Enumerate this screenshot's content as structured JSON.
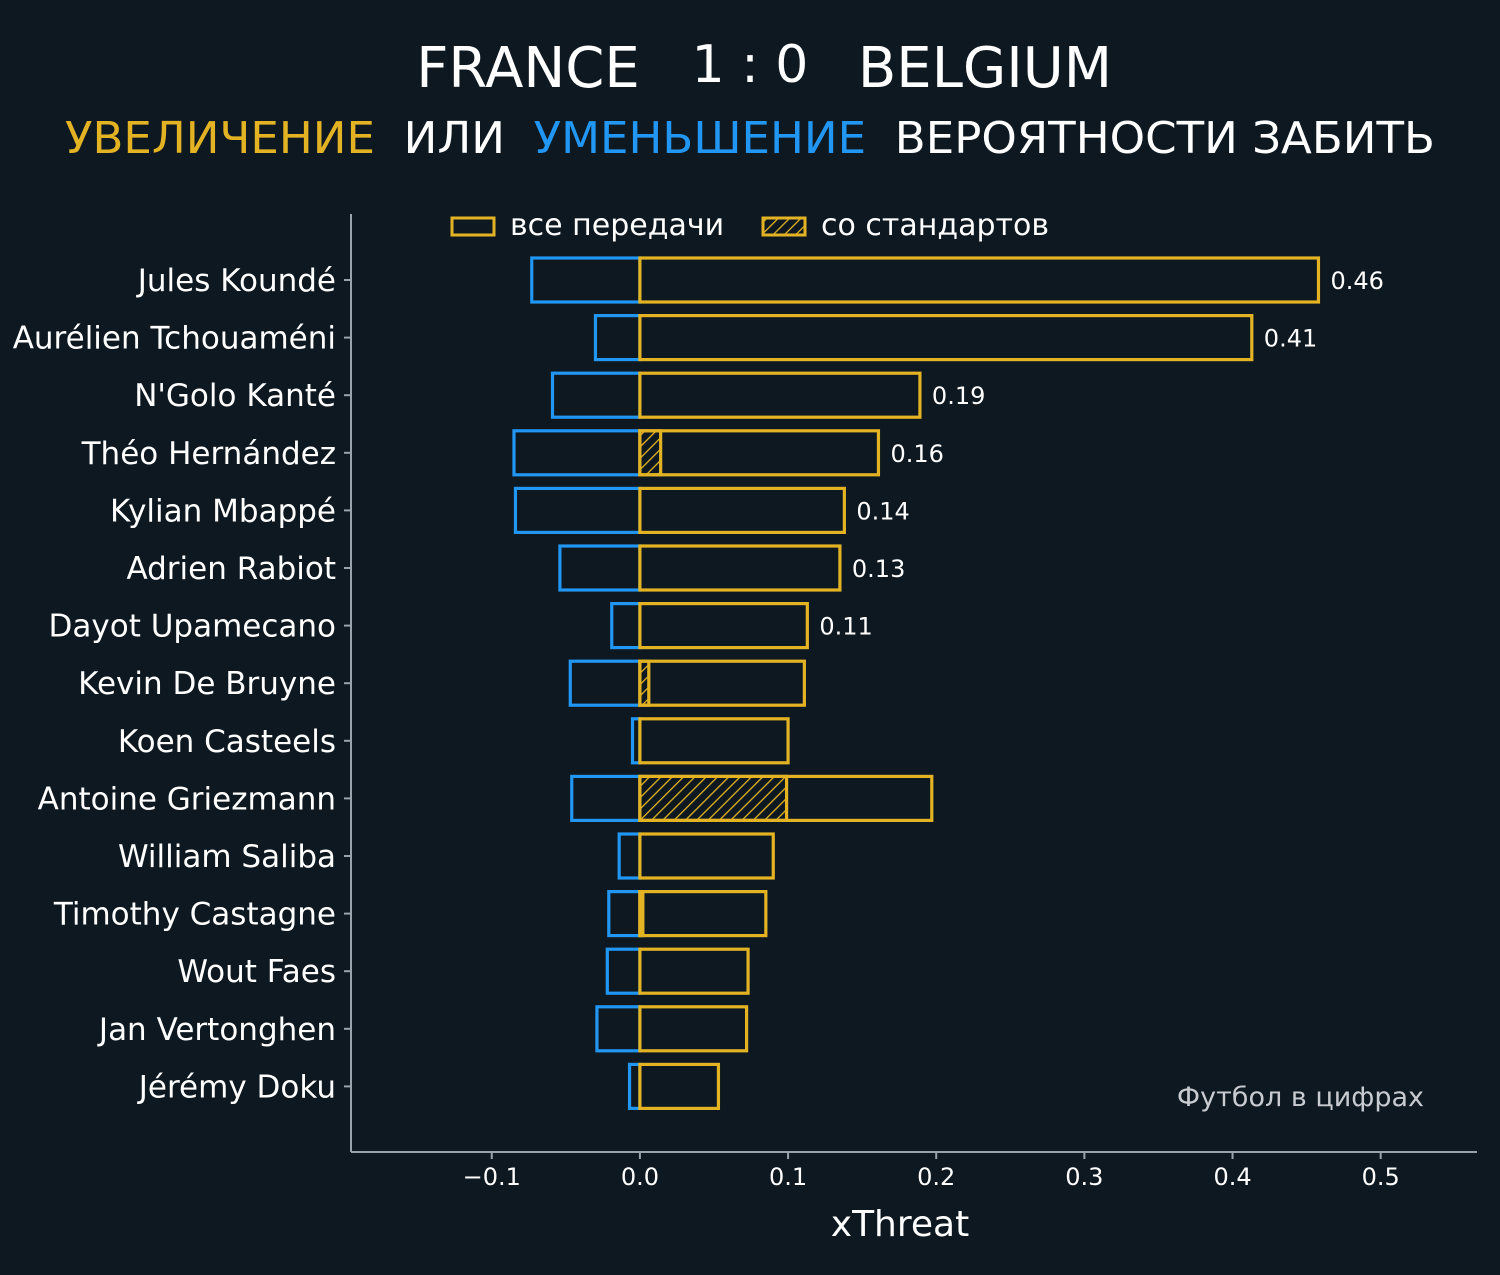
{
  "header": {
    "home_team": "FRANCE",
    "score": "1 : 0",
    "away_team": "BELGIUM",
    "subtitle_parts": [
      {
        "text": "УВЕЛИЧЕНИЕ",
        "color": "#e3b323"
      },
      {
        "text": "ИЛИ",
        "color": "#ffffff"
      },
      {
        "text": "УМЕНЬШЕНИЕ",
        "color": "#2196f3"
      },
      {
        "text": "ВЕРОЯТНОСТИ ЗАБИТЬ",
        "color": "#ffffff"
      }
    ]
  },
  "colors": {
    "background": "#0e1821",
    "increase": "#e3b323",
    "decrease": "#2196f3",
    "axis": "#9aa3ab",
    "text": "#ffffff",
    "watermark": "#c8ccd0"
  },
  "watermark": "Футбол в цифрах",
  "chart_data": {
    "type": "bar",
    "orientation": "horizontal",
    "xlabel": "xThreat",
    "xlim": [
      -0.195,
      0.565
    ],
    "xticks": [
      -0.1,
      0.0,
      0.1,
      0.2,
      0.3,
      0.4,
      0.5
    ],
    "xtick_labels": [
      "−0.1",
      "0.0",
      "0.1",
      "0.2",
      "0.3",
      "0.4",
      "0.5"
    ],
    "legend": {
      "position": "top",
      "entries": [
        {
          "label": "все передачи",
          "style": "outline"
        },
        {
          "label": "со стандартов",
          "style": "hatched"
        }
      ]
    },
    "categories": [
      "Jules Koundé",
      "Aurélien Tchouaméni",
      "N'Golo Kanté",
      "Théo Hernández",
      "Kylian Mbappé",
      "Adrien Rabiot",
      "Dayot Upamecano",
      "Kevin De Bruyne",
      "Koen Casteels",
      "Antoine Griezmann",
      "William Saliba",
      "Timothy Castagne",
      "Wout Faes",
      "Jan Vertonghen",
      "Jérémy Doku"
    ],
    "series": [
      {
        "name": "все передачи",
        "values": [
          0.458,
          0.413,
          0.189,
          0.161,
          0.138,
          0.135,
          0.113,
          0.111,
          0.1,
          0.197,
          0.09,
          0.085,
          0.073,
          0.072,
          0.053
        ]
      },
      {
        "values": [
          -0.073,
          -0.03,
          -0.059,
          -0.085,
          -0.084,
          -0.054,
          -0.019,
          -0.047,
          -0.005,
          -0.046,
          -0.014,
          -0.021,
          -0.022,
          -0.029,
          -0.007
        ]
      },
      {
        "name": "со стандартов",
        "values": [
          0,
          0,
          0,
          0.014,
          0,
          0,
          0,
          0.006,
          0,
          0.099,
          0,
          0.002,
          0,
          0,
          0
        ]
      }
    ],
    "value_labels": [
      "0.46",
      "0.41",
      "0.19",
      "0.16",
      "0.14",
      "0.13",
      "0.11",
      "",
      "",
      "",
      "",
      "",
      "",
      "",
      ""
    ]
  }
}
